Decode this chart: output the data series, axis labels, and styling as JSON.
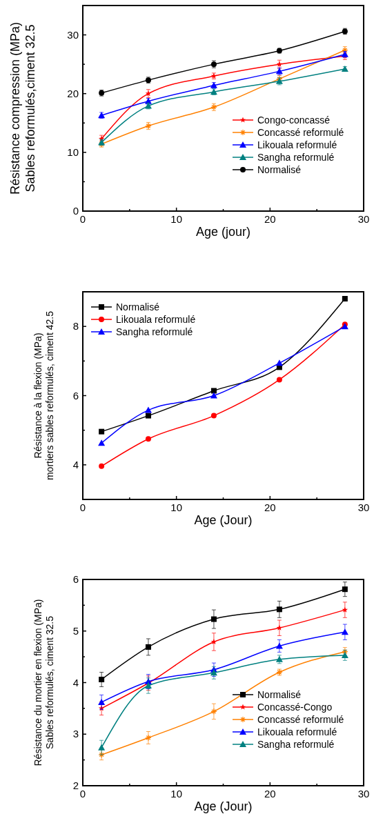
{
  "chart_data": [
    {
      "type": "line",
      "xlabel": "Age (jour)",
      "ylabel": "Résistance compression (MPa)\nSables reformulés,ciment 32.5",
      "x": [
        2,
        7,
        14,
        21,
        28
      ],
      "xlim": [
        0,
        30
      ],
      "xticks": [
        0,
        {
          "value": 5,
          "label": null
        },
        10,
        {
          "value": 15,
          "label": null
        },
        20,
        {
          "value": 25,
          "label": null
        },
        30
      ],
      "ylim": [
        0,
        35
      ],
      "yticks": [
        0,
        {
          "value": 5,
          "label": null
        },
        10,
        {
          "value": 15,
          "label": null
        },
        20,
        {
          "value": 25,
          "label": null
        },
        30
      ],
      "legend": "bottom right",
      "series": [
        {
          "name": "Congo-concassé",
          "color": "#ff0000",
          "marker": "star",
          "values": [
            12.3,
            20.0,
            23.0,
            25.0,
            26.4
          ],
          "errors": [
            0.6,
            0.7,
            0.5,
            0.7,
            0.6
          ]
        },
        {
          "name": "Concassé reformulé",
          "color": "#ff8000",
          "marker": "cross",
          "values": [
            11.4,
            14.5,
            17.7,
            22.5,
            27.4
          ],
          "errors": [
            0.5,
            0.6,
            0.6,
            0.6,
            0.6
          ]
        },
        {
          "name": "Likouala reformulé",
          "color": "#0000ff",
          "marker": "triangle",
          "values": [
            16.3,
            18.7,
            21.4,
            23.8,
            26.7
          ],
          "errors": [
            0.5,
            0.5,
            0.5,
            0.6,
            0.5
          ]
        },
        {
          "name": "Sangha reformulé",
          "color": "#008080",
          "marker": "triangle",
          "values": [
            11.7,
            17.9,
            20.3,
            22.1,
            24.2
          ],
          "errors": [
            0.5,
            0.5,
            0.5,
            0.6,
            0.4
          ]
        },
        {
          "name": "Normalisé",
          "color": "#000000",
          "marker": "circle",
          "values": [
            20.1,
            22.3,
            25.0,
            27.3,
            30.6
          ],
          "errors": [
            0.5,
            0.5,
            0.6,
            0.4,
            0.5
          ]
        }
      ]
    },
    {
      "type": "line",
      "xlabel": "Age (Jour)",
      "ylabel": "Résistance à la flexion (MPa)\nmortiers sables reformulés, ciment 42.5",
      "x": [
        2,
        7,
        14,
        21,
        28
      ],
      "xlim": [
        0,
        30
      ],
      "xticks": [
        0,
        {
          "value": 5,
          "label": null
        },
        10,
        {
          "value": 15,
          "label": null
        },
        20,
        {
          "value": 25,
          "label": null
        },
        30
      ],
      "ylim": [
        3,
        9
      ],
      "yticks": [
        4,
        {
          "value": 5,
          "label": null
        },
        6,
        {
          "value": 7,
          "label": null
        },
        8
      ],
      "legend": "top left",
      "series": [
        {
          "name": "Normalisé",
          "color": "#000000",
          "marker": "square",
          "values": [
            4.96,
            5.42,
            6.14,
            6.82,
            8.8
          ]
        },
        {
          "name": "Likouala reformulé",
          "color": "#ff0000",
          "marker": "circle",
          "values": [
            3.96,
            4.75,
            5.42,
            6.46,
            8.06
          ]
        },
        {
          "name": "Sangha reformulé",
          "color": "#0000ff",
          "marker": "triangle",
          "values": [
            4.63,
            5.58,
            6.0,
            6.94,
            8.0
          ]
        }
      ]
    },
    {
      "type": "line",
      "xlabel": "Age (Jour)",
      "ylabel": "Résistance du mortier en flexion (MPa)\nSables reformulés, ciment 32.5",
      "x": [
        2,
        7,
        14,
        21,
        28
      ],
      "xlim": [
        0,
        30
      ],
      "xticks": [
        0,
        {
          "value": 5,
          "label": null
        },
        10,
        {
          "value": 15,
          "label": null
        },
        20,
        {
          "value": 25,
          "label": null
        },
        30
      ],
      "ylim": [
        2,
        6
      ],
      "yticks": [
        2,
        {
          "value": 2.5,
          "label": null
        },
        3,
        {
          "value": 3.5,
          "label": null
        },
        4,
        {
          "value": 4.5,
          "label": null
        },
        5,
        {
          "value": 5.5,
          "label": null
        },
        6
      ],
      "legend": "bottom right",
      "series": [
        {
          "name": "Normalisé",
          "color": "#000000",
          "marker": "square",
          "values": [
            4.06,
            4.69,
            5.23,
            5.42,
            5.81
          ],
          "errors": [
            0.14,
            0.16,
            0.18,
            0.16,
            0.14
          ]
        },
        {
          "name": "Concassé-Congo",
          "color": "#ff0000",
          "marker": "star",
          "values": [
            3.5,
            3.99,
            4.79,
            5.06,
            5.41
          ],
          "errors": [
            0.13,
            0.14,
            0.17,
            0.15,
            0.15
          ]
        },
        {
          "name": "Concassé reformulé",
          "color": "#ff8000",
          "marker": "cross",
          "values": [
            2.6,
            2.93,
            3.44,
            4.2,
            4.6
          ],
          "errors": [
            0.1,
            0.12,
            0.15,
            0.06,
            0.08
          ]
        },
        {
          "name": "Likouala reformulé",
          "color": "#0000ff",
          "marker": "triangle",
          "values": [
            3.62,
            4.02,
            4.25,
            4.71,
            4.98
          ],
          "errors": [
            0.14,
            0.14,
            0.13,
            0.12,
            0.15
          ]
        },
        {
          "name": "Sangha reformulé",
          "color": "#008080",
          "marker": "triangle",
          "values": [
            2.74,
            3.94,
            4.19,
            4.45,
            4.53
          ],
          "errors": [
            0.14,
            0.15,
            0.12,
            0.08,
            0.1
          ]
        }
      ]
    }
  ]
}
